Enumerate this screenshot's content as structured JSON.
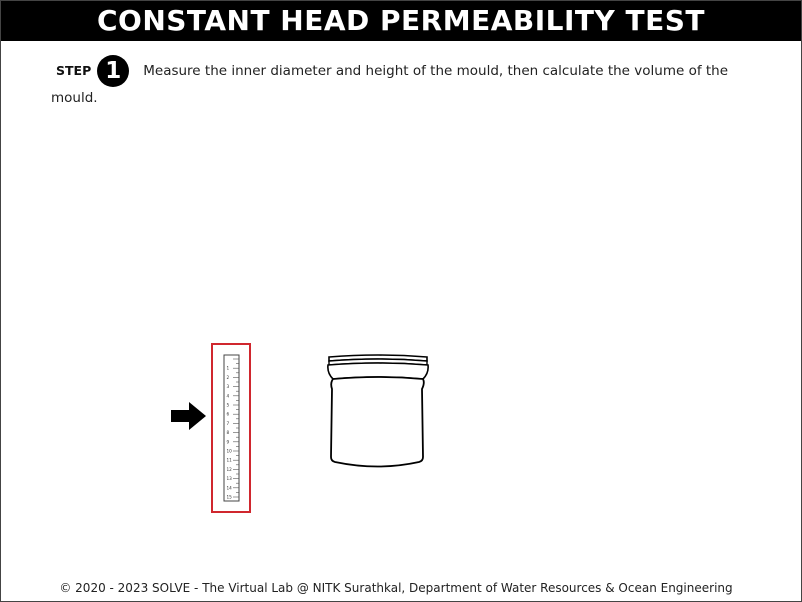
{
  "header": {
    "title": "CONSTANT HEAD PERMEABILITY TEST"
  },
  "step": {
    "label": "STEP",
    "number": "1",
    "instruction": "Measure the inner diameter and height of the mould, then calculate the volume of the mould."
  },
  "ruler": {
    "tick_labels": [
      "1",
      "2",
      "3",
      "4",
      "5",
      "6",
      "7",
      "8",
      "9",
      "10",
      "11",
      "12",
      "13",
      "14",
      "15"
    ],
    "highlight_color": "#d0272e"
  },
  "icons": {
    "pointer": "arrow-right-icon"
  },
  "footer": {
    "copyright": "© 2020 - 2023 SOLVE - The Virtual Lab @ NITK Surathkal, Department of Water Resources & Ocean Engineering"
  }
}
